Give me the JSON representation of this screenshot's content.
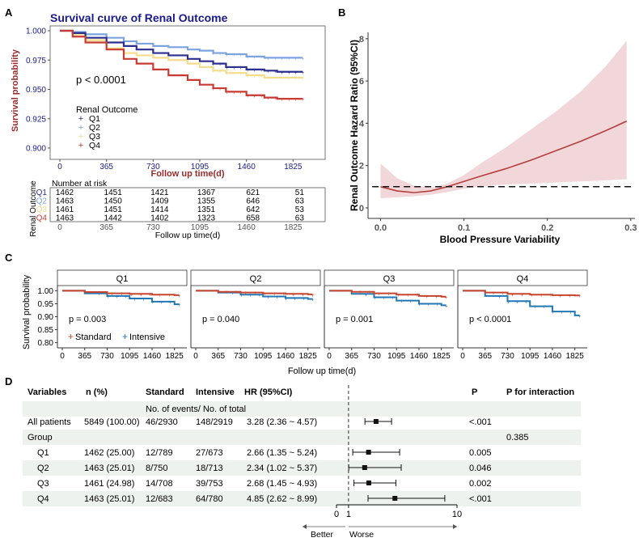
{
  "panels": {
    "A": {
      "label": "A",
      "title": "Survival curve of Renal Outcome",
      "ylabel": "Survival probability",
      "xlabel": "Follow up time(d)",
      "pvalue": "p < 0.0001",
      "legend_title": "Renal Outcome",
      "risk_title": "Number at risk",
      "risk_ylabel": "Renal Outcome",
      "risk_xlabel": "Follow up time(d)"
    },
    "B": {
      "label": "B",
      "ylabel": "Renal Outcome Hazard Ratio (95%CI)",
      "xlabel": "Blood Pressure Variability"
    },
    "C": {
      "label": "C",
      "ylabel": "Survival probability",
      "xlabel": "Follow up time(d)",
      "legend": [
        "Standard",
        "Intensive"
      ]
    },
    "D": {
      "label": "D",
      "headers": [
        "Variables",
        "n (%)",
        "Standard",
        "Intensive",
        "HR (95%CI)",
        "P",
        "P for interaction"
      ],
      "subheader": "No. of events/ No. of total",
      "axis_ticks": [
        "0",
        "1",
        "10"
      ],
      "axis_left": "Better",
      "axis_right": "Worse"
    }
  },
  "colors": {
    "q1": "#2b2f8f",
    "q2": "#7aa3df",
    "q3": "#f3dc8a",
    "q4": "#c83a32",
    "standard": "#c8452d",
    "intensive": "#2277b4",
    "spline": "#b5403e",
    "band": "#f1d7d9",
    "title": "#1a1a8a",
    "axis_red": "#9b2a2a",
    "row_band": "#eef2ee"
  },
  "chart_data": [
    {
      "id": "A",
      "type": "line",
      "title": "Survival curve of Renal Outcome",
      "xlabel": "Follow up time(d)",
      "ylabel": "Survival probability",
      "xlim": [
        0,
        2000
      ],
      "ylim": [
        0.9,
        1.0
      ],
      "xticks": [
        0,
        365,
        730,
        1095,
        1460,
        1825
      ],
      "yticks": [
        0.9,
        0.925,
        0.95,
        0.975,
        1.0
      ],
      "ytick_labels": [
        "0.900",
        "0.925",
        "0.950",
        "0.975",
        "1.000"
      ],
      "series": [
        {
          "name": "Q1",
          "x": [
            0,
            100,
            200,
            365,
            500,
            600,
            730,
            850,
            1000,
            1095,
            1200,
            1300,
            1460,
            1600,
            1700,
            1825,
            1900
          ],
          "y": [
            1.0,
            0.998,
            0.994,
            0.99,
            0.987,
            0.984,
            0.981,
            0.979,
            0.976,
            0.974,
            0.972,
            0.969,
            0.967,
            0.966,
            0.965,
            0.965,
            0.965
          ]
        },
        {
          "name": "Q2",
          "x": [
            0,
            100,
            200,
            365,
            500,
            600,
            730,
            850,
            1000,
            1095,
            1200,
            1300,
            1460,
            1600,
            1700,
            1825,
            1900
          ],
          "y": [
            1.0,
            0.999,
            0.997,
            0.994,
            0.991,
            0.989,
            0.987,
            0.986,
            0.984,
            0.983,
            0.981,
            0.98,
            0.978,
            0.977,
            0.977,
            0.977,
            0.977
          ]
        },
        {
          "name": "Q3",
          "x": [
            0,
            100,
            200,
            365,
            500,
            600,
            730,
            850,
            1000,
            1095,
            1200,
            1300,
            1460,
            1600,
            1700,
            1825,
            1900
          ],
          "y": [
            1.0,
            0.997,
            0.992,
            0.985,
            0.981,
            0.979,
            0.977,
            0.975,
            0.972,
            0.969,
            0.966,
            0.964,
            0.962,
            0.96,
            0.96,
            0.96,
            0.96
          ]
        },
        {
          "name": "Q4",
          "x": [
            0,
            100,
            200,
            365,
            500,
            600,
            730,
            850,
            1000,
            1095,
            1200,
            1300,
            1460,
            1600,
            1700,
            1825,
            1900
          ],
          "y": [
            1.0,
            0.995,
            0.99,
            0.984,
            0.976,
            0.972,
            0.967,
            0.962,
            0.958,
            0.954,
            0.951,
            0.948,
            0.945,
            0.943,
            0.942,
            0.942,
            0.942
          ]
        }
      ],
      "risk_table": {
        "times": [
          "0",
          "365",
          "730",
          "1095",
          "1460",
          "1825"
        ],
        "rows": [
          {
            "group": "Q1",
            "counts": [
              "1462",
              "1451",
              "1421",
              "1367",
              "621",
              "51"
            ]
          },
          {
            "group": "Q2",
            "counts": [
              "1463",
              "1450",
              "1409",
              "1355",
              "646",
              "63"
            ]
          },
          {
            "group": "Q3",
            "counts": [
              "1461",
              "1451",
              "1414",
              "1351",
              "642",
              "53"
            ]
          },
          {
            "group": "Q4",
            "counts": [
              "1463",
              "1442",
              "1402",
              "1323",
              "658",
              "63"
            ]
          }
        ]
      }
    },
    {
      "id": "B",
      "type": "line",
      "xlabel": "Blood Pressure Variability",
      "ylabel": "Renal Outcome Hazard Ratio (95%CI)",
      "xlim": [
        -0.015,
        0.305
      ],
      "ylim": [
        -0.5,
        8.3
      ],
      "xticks": [
        0.0,
        0.1,
        0.2,
        0.3
      ],
      "xtick_labels": [
        "0.0",
        "0.1",
        "0.2",
        "0.3"
      ],
      "yticks": [
        0,
        2,
        4,
        6,
        8
      ],
      "reference_line": 1,
      "series": [
        {
          "name": "HR",
          "x": [
            0.0,
            0.02,
            0.04,
            0.06,
            0.08,
            0.1,
            0.12,
            0.15,
            0.18,
            0.21,
            0.24,
            0.27,
            0.295
          ],
          "y": [
            1.0,
            0.8,
            0.72,
            0.8,
            1.0,
            1.25,
            1.5,
            1.85,
            2.25,
            2.7,
            3.15,
            3.65,
            4.1
          ]
        },
        {
          "name": "CI upper",
          "x": [
            0.0,
            0.02,
            0.04,
            0.06,
            0.08,
            0.1,
            0.12,
            0.15,
            0.18,
            0.21,
            0.24,
            0.27,
            0.295
          ],
          "y": [
            2.1,
            1.4,
            1.05,
            0.95,
            1.15,
            1.55,
            2.1,
            2.85,
            3.7,
            4.55,
            5.5,
            6.7,
            7.9
          ]
        },
        {
          "name": "CI lower",
          "x": [
            0.0,
            0.02,
            0.04,
            0.06,
            0.08,
            0.1,
            0.12,
            0.15,
            0.18,
            0.21,
            0.24,
            0.27,
            0.295
          ],
          "y": [
            0.45,
            0.5,
            0.55,
            0.62,
            0.75,
            0.9,
            1.02,
            1.1,
            1.15,
            1.2,
            1.25,
            1.3,
            1.35
          ]
        }
      ]
    },
    {
      "id": "C",
      "type": "line",
      "xlabel": "Follow up time(d)",
      "ylabel": "Survival probability",
      "xlim": [
        0,
        2000
      ],
      "ylim": [
        0.78,
        1.02
      ],
      "xticks": [
        0,
        365,
        730,
        1095,
        1460,
        1825
      ],
      "yticks": [
        0.8,
        0.85,
        0.9,
        0.95,
        1.0
      ],
      "ytick_labels": [
        "0.80",
        "0.85",
        "0.90",
        "0.95",
        "1.00"
      ],
      "facets": [
        {
          "name": "Q1",
          "pvalue": "p = 0.003",
          "standard": {
            "x": [
              0,
              365,
              730,
              1095,
              1460,
              1825,
              1900
            ],
            "y": [
              1.0,
              0.995,
              0.99,
              0.988,
              0.985,
              0.983,
              0.983
            ]
          },
          "intensive": {
            "x": [
              0,
              365,
              730,
              1095,
              1460,
              1825,
              1900
            ],
            "y": [
              1.0,
              0.99,
              0.98,
              0.97,
              0.958,
              0.948,
              0.948
            ]
          }
        },
        {
          "name": "Q2",
          "pvalue": "p = 0.040",
          "standard": {
            "x": [
              0,
              365,
              730,
              1095,
              1460,
              1825,
              1900
            ],
            "y": [
              1.0,
              0.996,
              0.993,
              0.99,
              0.988,
              0.986,
              0.986
            ]
          },
          "intensive": {
            "x": [
              0,
              365,
              730,
              1095,
              1460,
              1825,
              1900
            ],
            "y": [
              1.0,
              0.993,
              0.985,
              0.978,
              0.972,
              0.968,
              0.968
            ]
          }
        },
        {
          "name": "Q3",
          "pvalue": "p = 0.001",
          "standard": {
            "x": [
              0,
              365,
              730,
              1095,
              1460,
              1825,
              1900
            ],
            "y": [
              1.0,
              0.996,
              0.99,
              0.985,
              0.98,
              0.977,
              0.977
            ]
          },
          "intensive": {
            "x": [
              0,
              365,
              730,
              1095,
              1460,
              1825,
              1900
            ],
            "y": [
              1.0,
              0.988,
              0.975,
              0.962,
              0.95,
              0.944,
              0.944
            ]
          }
        },
        {
          "name": "Q4",
          "pvalue": "p < 0.0001",
          "standard": {
            "x": [
              0,
              365,
              730,
              1095,
              1460,
              1825,
              1900
            ],
            "y": [
              1.0,
              0.993,
              0.988,
              0.985,
              0.983,
              0.982,
              0.982
            ]
          },
          "intensive": {
            "x": [
              0,
              365,
              730,
              1095,
              1460,
              1825,
              1900
            ],
            "y": [
              1.0,
              0.98,
              0.96,
              0.94,
              0.92,
              0.905,
              0.905
            ]
          }
        }
      ]
    },
    {
      "id": "D",
      "type": "table",
      "x_axis": {
        "min": 0,
        "max": 10,
        "ref": 1
      },
      "rows": [
        {
          "variable": "All patients",
          "n": "5849 (100.00)",
          "standard": "46/2930",
          "intensive": "148/2919",
          "hr_text": "3.28 (2.36 ~ 4.57)",
          "hr": 3.28,
          "lo": 2.36,
          "hi": 4.57,
          "p": "<.001",
          "p_int": "",
          "indent": false,
          "band": false
        },
        {
          "variable": "Group",
          "n": "",
          "standard": "",
          "intensive": "",
          "hr_text": "",
          "hr": null,
          "lo": null,
          "hi": null,
          "p": "",
          "p_int": "0.385",
          "indent": false,
          "band": true
        },
        {
          "variable": "Q1",
          "n": "1462 (25.00)",
          "standard": "12/789",
          "intensive": "27/673",
          "hr_text": "2.66 (1.35 ~ 5.24)",
          "hr": 2.66,
          "lo": 1.35,
          "hi": 5.24,
          "p": "0.005",
          "p_int": "",
          "indent": true,
          "band": false
        },
        {
          "variable": "Q2",
          "n": "1463 (25.01)",
          "standard": "8/750",
          "intensive": "18/713",
          "hr_text": "2.34 (1.02 ~ 5.37)",
          "hr": 2.34,
          "lo": 1.02,
          "hi": 5.37,
          "p": "0.046",
          "p_int": "",
          "indent": true,
          "band": true
        },
        {
          "variable": "Q3",
          "n": "1461 (24.98)",
          "standard": "14/708",
          "intensive": "39/753",
          "hr_text": "2.68 (1.45 ~ 4.93)",
          "hr": 2.68,
          "lo": 1.45,
          "hi": 4.93,
          "p": "0.002",
          "p_int": "",
          "indent": true,
          "band": false
        },
        {
          "variable": "Q4",
          "n": "1463 (25.01)",
          "standard": "12/683",
          "intensive": "64/780",
          "hr_text": "4.85 (2.62 ~ 8.99)",
          "hr": 4.85,
          "lo": 2.62,
          "hi": 8.99,
          "p": "<.001",
          "p_int": "",
          "indent": true,
          "band": true
        }
      ]
    }
  ]
}
